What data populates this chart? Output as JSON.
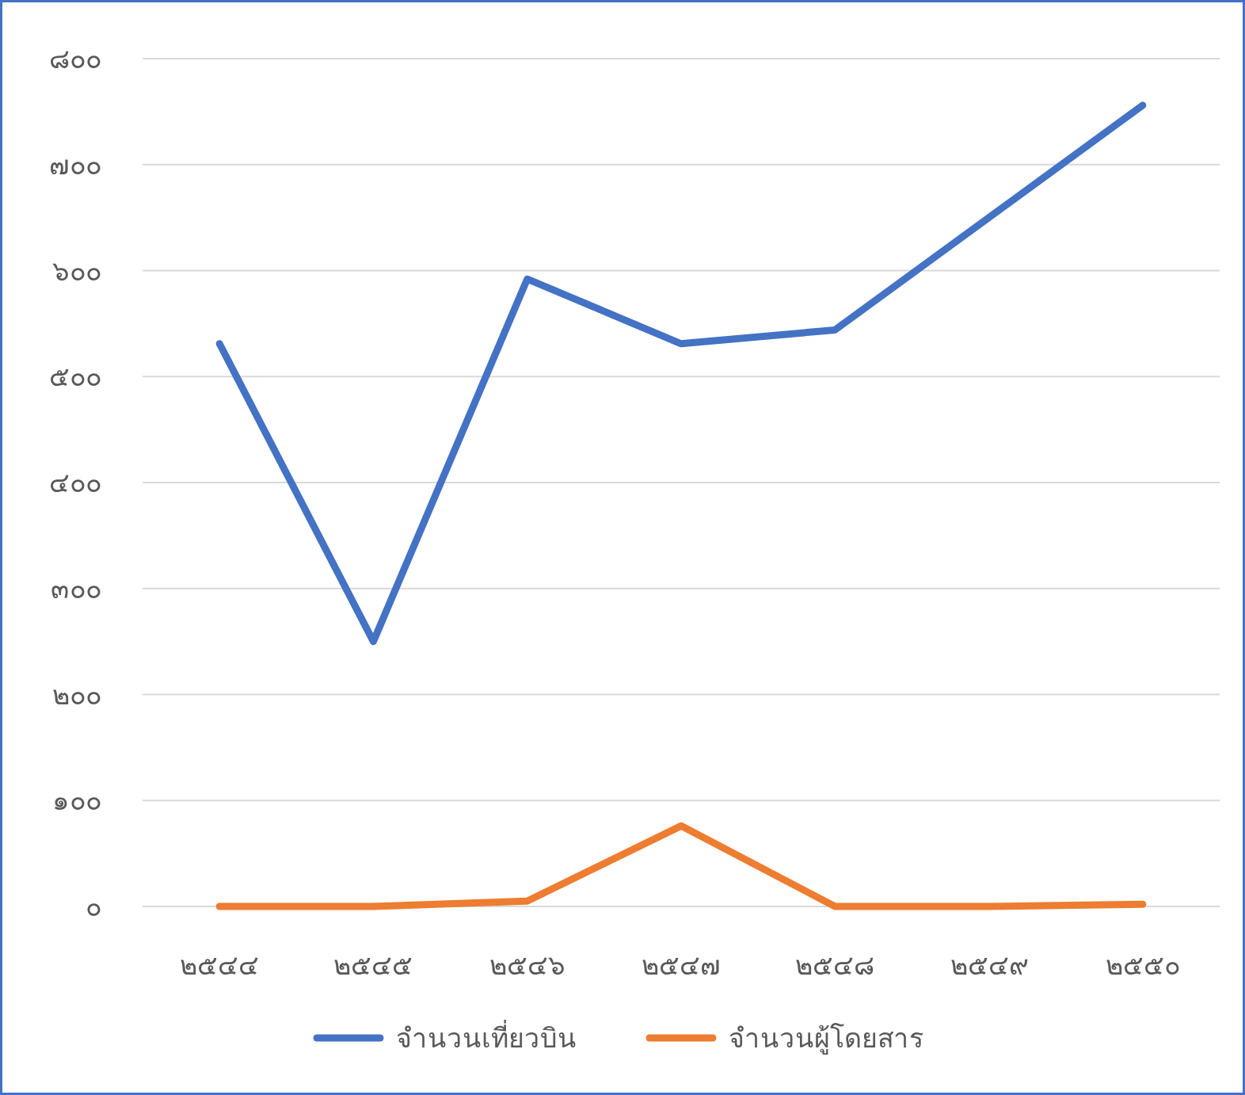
{
  "chart_data": {
    "type": "line",
    "categories": [
      "๒๕๔๔",
      "๒๕๔๕",
      "๒๕๔๖",
      "๒๕๔๗",
      "๒๕๔๘",
      "๒๕๔๙",
      "๒๕๕๐"
    ],
    "series": [
      {
        "name": "จำนวนเที่ยวบิน",
        "color": "#4472c4",
        "values": [
          531,
          250,
          592,
          531,
          544,
          650,
          756
        ]
      },
      {
        "name": "จำนวนผู้โดยสาร",
        "color": "#ed7d31",
        "values": [
          0,
          0,
          5,
          76,
          0,
          0,
          2
        ]
      }
    ],
    "ylim": [
      0,
      800
    ],
    "yticks": [
      {
        "value": 0,
        "label": "๐"
      },
      {
        "value": 100,
        "label": "๑๐๐"
      },
      {
        "value": 200,
        "label": "๒๐๐"
      },
      {
        "value": 300,
        "label": "๓๐๐"
      },
      {
        "value": 400,
        "label": "๔๐๐"
      },
      {
        "value": 500,
        "label": "๕๐๐"
      },
      {
        "value": 600,
        "label": "๖๐๐"
      },
      {
        "value": 700,
        "label": "๗๐๐"
      },
      {
        "value": 800,
        "label": "๘๐๐"
      }
    ],
    "grid": "y",
    "legend": "bottom",
    "marker": "none"
  }
}
